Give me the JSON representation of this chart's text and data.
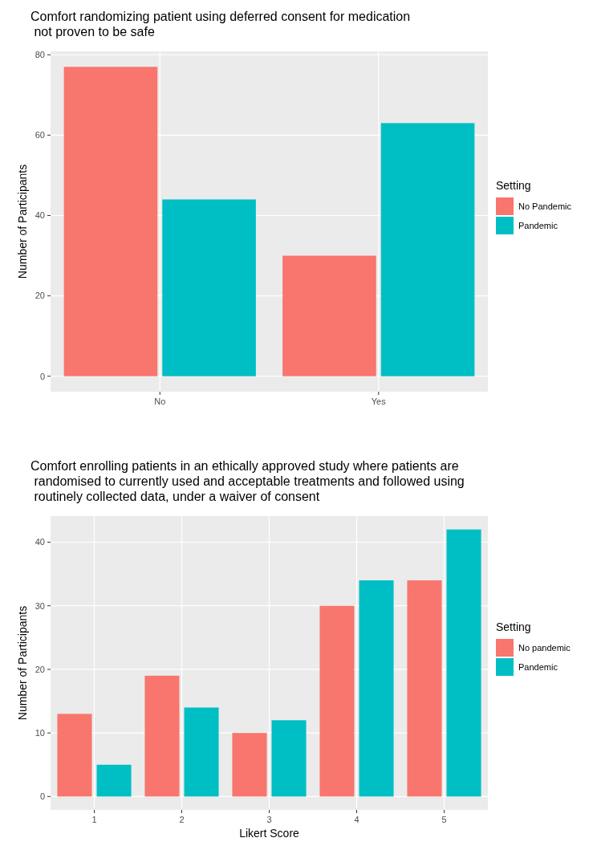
{
  "chart_data": [
    {
      "type": "bar",
      "title": "Comfort randomizing patient using deferred consent for medication\n not proven to be safe",
      "ylabel": "Number of Participants",
      "categories": [
        "No",
        "Yes"
      ],
      "legend_title": "Setting",
      "series": [
        {
          "name": "No Pandemic",
          "color": "#f8766d",
          "values": [
            77,
            30
          ]
        },
        {
          "name": "Pandemic",
          "color": "#00bfc4",
          "values": [
            44,
            63
          ]
        }
      ],
      "ylim": [
        -3.85,
        80.85
      ],
      "yticks": [
        0,
        20,
        40,
        60,
        80
      ],
      "grid": true,
      "legend": "right"
    },
    {
      "type": "bar",
      "title": "Comfort enrolling patients in an ethically approved study where patients are\n randomised to currently used and acceptable treatments and followed using\n routinely collected data, under a waiver of consent",
      "xlabel": "Likert Score",
      "ylabel": "Number of Participants",
      "categories": [
        "1",
        "2",
        "3",
        "4",
        "5"
      ],
      "legend_title": "Setting",
      "series": [
        {
          "name": "No pandemic",
          "color": "#f8766d",
          "values": [
            13,
            19,
            10,
            30,
            34
          ]
        },
        {
          "name": "Pandemic",
          "color": "#00bfc4",
          "values": [
            5,
            14,
            12,
            34,
            42
          ]
        }
      ],
      "ylim": [
        -2.1,
        44.1
      ],
      "yticks": [
        0,
        10,
        20,
        30,
        40
      ],
      "grid": true,
      "legend": "right"
    }
  ]
}
